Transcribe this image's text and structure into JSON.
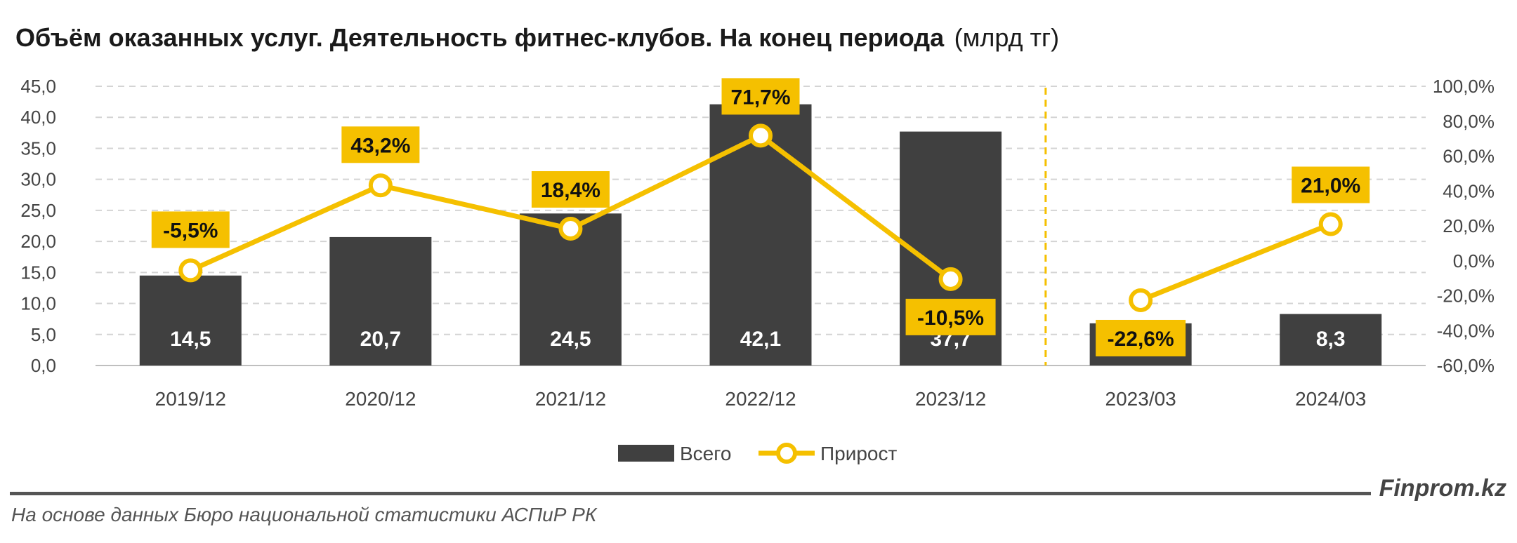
{
  "header": {
    "title": "Объём оказанных услуг. Деятельность фитнес-клубов. На конец периода",
    "title_unit": "(млрд тг)"
  },
  "footer": {
    "brand": "Finprom.kz",
    "source": "На основе данных Бюро национальной статистики АСПиР РК"
  },
  "colors": {
    "bar": "#404040",
    "line": "#f5c000",
    "label_bg": "#f5c000",
    "grid": "#d4d4d4",
    "divider": "#f5c000"
  },
  "chart_data": {
    "type": "bar",
    "categories": [
      "2019/12",
      "2020/12",
      "2021/12",
      "2022/12",
      "2023/12",
      "2023/03",
      "2024/03"
    ],
    "series": [
      {
        "name": "Всего",
        "type": "bar",
        "axis": "left",
        "values": [
          14.5,
          20.7,
          24.5,
          42.1,
          37.7,
          6.8,
          8.3
        ],
        "labels": [
          "14,5",
          "20,7",
          "24,5",
          "42,1",
          "37,7",
          "6,8",
          "8,3"
        ]
      },
      {
        "name": "Прирост",
        "type": "line",
        "axis": "right",
        "values": [
          -5.5,
          43.2,
          18.4,
          71.7,
          -10.5,
          -22.6,
          21.0
        ],
        "labels": [
          "-5,5%",
          "43,2%",
          "18,4%",
          "71,7%",
          "-10,5%",
          "-22,6%",
          "21,0%"
        ],
        "segments": [
          [
            0,
            4
          ],
          [
            5,
            6
          ]
        ]
      }
    ],
    "y_left": {
      "min": 0,
      "max": 45,
      "step": 5,
      "ticks": [
        "0,0",
        "5,0",
        "10,0",
        "15,0",
        "20,0",
        "25,0",
        "30,0",
        "35,0",
        "40,0",
        "45,0"
      ]
    },
    "y_right": {
      "min": -60,
      "max": 100,
      "step": 20,
      "ticks": [
        "-60,0%",
        "-40,0%",
        "-20,0%",
        "0,0%",
        "20,0%",
        "40,0%",
        "60,0%",
        "80,0%",
        "100,0%"
      ]
    },
    "divider_after_index": 4,
    "grid": true,
    "legend_position": "bottom"
  }
}
